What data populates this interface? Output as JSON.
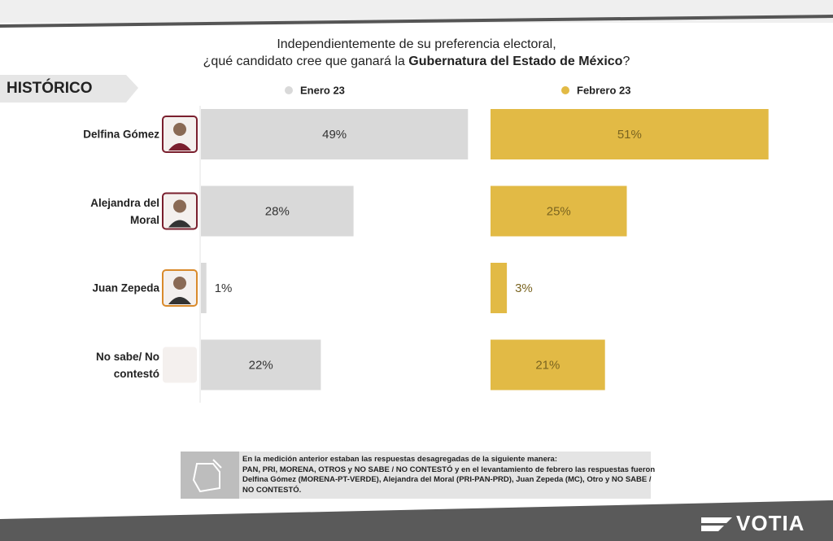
{
  "header": {
    "title_parts": [
      "Independientemente de su preferencia electoral,",
      "¿qué candidato cree que ganará la ",
      "Gubernatura del Estado de México",
      "?"
    ],
    "section": "HISTÓRICO"
  },
  "chart_data": {
    "type": "bar",
    "orientation": "horizontal",
    "categories": [
      "Delfina Gómez",
      "Alejandra del Moral",
      "Juan Zepeda",
      "No sabe/ No contestó"
    ],
    "series": [
      {
        "name": "Enero 23",
        "color": "#d9d9d9",
        "label_color": "#333333",
        "values": [
          49,
          28,
          1,
          22
        ],
        "value_labels": [
          "49%",
          "28%",
          "1%",
          "22%"
        ]
      },
      {
        "name": "Febrero 23",
        "color": "#e2ba45",
        "label_color": "#7a6420",
        "values": [
          51,
          25,
          3,
          21
        ],
        "value_labels": [
          "51%",
          "25%",
          "3%",
          "21%"
        ]
      }
    ]
  },
  "note": {
    "lines": [
      "En la medición anterior estaban las respuestas desagregadas de la siguiente manera:",
      "PAN, PRI, MORENA, OTROS y NO SABE / NO CONTESTÓ y en el levantamiento de febrero las respuestas fueron",
      "Delfina Gómez (MORENA-PT-VERDE), Alejandra del Moral (PRI-PAN-PRD), Juan Zepeda (MC), Otro y NO SABE /",
      "NO CONTESTÓ."
    ]
  },
  "footer": {
    "logo": "VOTIA"
  }
}
